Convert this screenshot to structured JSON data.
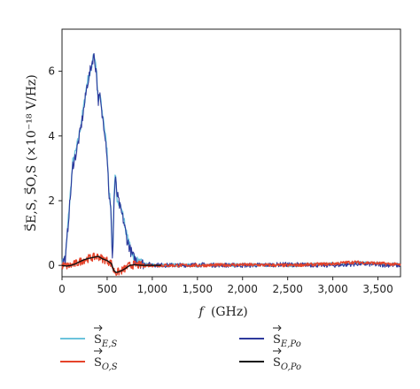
{
  "chart_data": {
    "type": "line",
    "xlabel_var": "f",
    "xlabel_unit": "(GHz)",
    "ylabel": "S⃗E,S, S⃗O,S (×10⁻¹⁸ V/Hz)",
    "xlim": [
      0,
      3750
    ],
    "ylim": [
      -0.35,
      7.3
    ],
    "xticks": [
      0,
      500,
      1000,
      1500,
      2000,
      2500,
      3000,
      3500
    ],
    "xtick_labels": [
      "0",
      "500",
      "1,000",
      "1,500",
      "2,000",
      "2,500",
      "3,000",
      "3,500"
    ],
    "yticks": [
      0,
      2,
      4,
      6
    ],
    "ytick_labels": [
      "0",
      "2",
      "4",
      "6"
    ],
    "legend_position": "bottom",
    "series": [
      {
        "name": "S E,S",
        "label_main": "S",
        "label_sub": "E,S",
        "color": "#6cc3dc",
        "noise": 0.05,
        "x": [
          0,
          40,
          80,
          120,
          160,
          200,
          240,
          280,
          320,
          350,
          380,
          400,
          420,
          440,
          460,
          480,
          500,
          520,
          540,
          560,
          575,
          590,
          610,
          640,
          680,
          720,
          760,
          800,
          850,
          900,
          1000,
          1200,
          1500,
          2000,
          2500,
          3000,
          3300,
          3500,
          3750
        ],
        "y": [
          0.05,
          0.3,
          1.8,
          3.2,
          3.6,
          4.2,
          4.9,
          5.7,
          6.0,
          6.6,
          6.1,
          5.0,
          5.3,
          4.8,
          4.5,
          4.0,
          3.5,
          2.3,
          1.8,
          0.2,
          2.0,
          2.8,
          2.1,
          1.9,
          1.5,
          0.9,
          0.5,
          0.25,
          0.1,
          0.05,
          0.0,
          0.02,
          0.0,
          0.02,
          0.0,
          0.05,
          0.08,
          0.05,
          0.02
        ]
      },
      {
        "name": "S E,Po",
        "label_main": "S",
        "label_sub": "E,Po",
        "color": "#2e3a9c",
        "noise": 0.07,
        "x": [
          0,
          40,
          80,
          120,
          160,
          200,
          240,
          280,
          320,
          350,
          380,
          400,
          420,
          440,
          460,
          480,
          500,
          520,
          540,
          560,
          575,
          590,
          610,
          640,
          680,
          720,
          760,
          800,
          850,
          900,
          1000,
          1200,
          1500,
          2000,
          2500,
          3000,
          3300,
          3500,
          3750
        ],
        "y": [
          0.05,
          0.25,
          1.7,
          3.1,
          3.5,
          4.1,
          4.8,
          5.6,
          6.1,
          6.5,
          6.0,
          5.1,
          5.2,
          4.7,
          4.4,
          4.0,
          3.4,
          2.2,
          1.7,
          0.15,
          1.9,
          2.7,
          2.2,
          1.8,
          1.4,
          0.8,
          0.45,
          0.2,
          0.1,
          0.05,
          0.02,
          0.0,
          0.02,
          0.0,
          0.03,
          0.0,
          0.05,
          0.02,
          0.0
        ]
      },
      {
        "name": "S O,S",
        "label_main": "S",
        "label_sub": "O,S",
        "color": "#e5432a",
        "noise": 0.05,
        "x": [
          0,
          50,
          100,
          150,
          200,
          250,
          300,
          350,
          400,
          450,
          500,
          550,
          570,
          600,
          650,
          700,
          750,
          800,
          900,
          1000,
          1500,
          2000,
          2500,
          3000,
          3200,
          3400,
          3600,
          3750
        ],
        "y": [
          0.0,
          -0.02,
          0.0,
          0.05,
          0.12,
          0.18,
          0.22,
          0.25,
          0.28,
          0.2,
          0.15,
          0.05,
          -0.15,
          -0.22,
          -0.18,
          -0.1,
          0.0,
          0.02,
          0.0,
          0.0,
          0.0,
          0.02,
          0.0,
          0.05,
          0.1,
          0.08,
          0.05,
          0.02
        ]
      },
      {
        "name": "S O,Po",
        "label_main": "S",
        "label_sub": "O,Po",
        "color": "#111111",
        "noise": 0.0,
        "x": [
          0,
          50,
          100,
          150,
          200,
          250,
          300,
          350,
          400,
          450,
          500,
          550,
          570,
          600,
          650,
          700,
          750,
          800,
          900,
          1000,
          1100
        ],
        "y": [
          0.0,
          -0.02,
          0.0,
          0.05,
          0.12,
          0.18,
          0.22,
          0.25,
          0.28,
          0.2,
          0.15,
          0.05,
          -0.15,
          -0.22,
          -0.18,
          -0.1,
          0.0,
          0.02,
          0.0,
          0.0,
          0.0
        ]
      }
    ]
  }
}
